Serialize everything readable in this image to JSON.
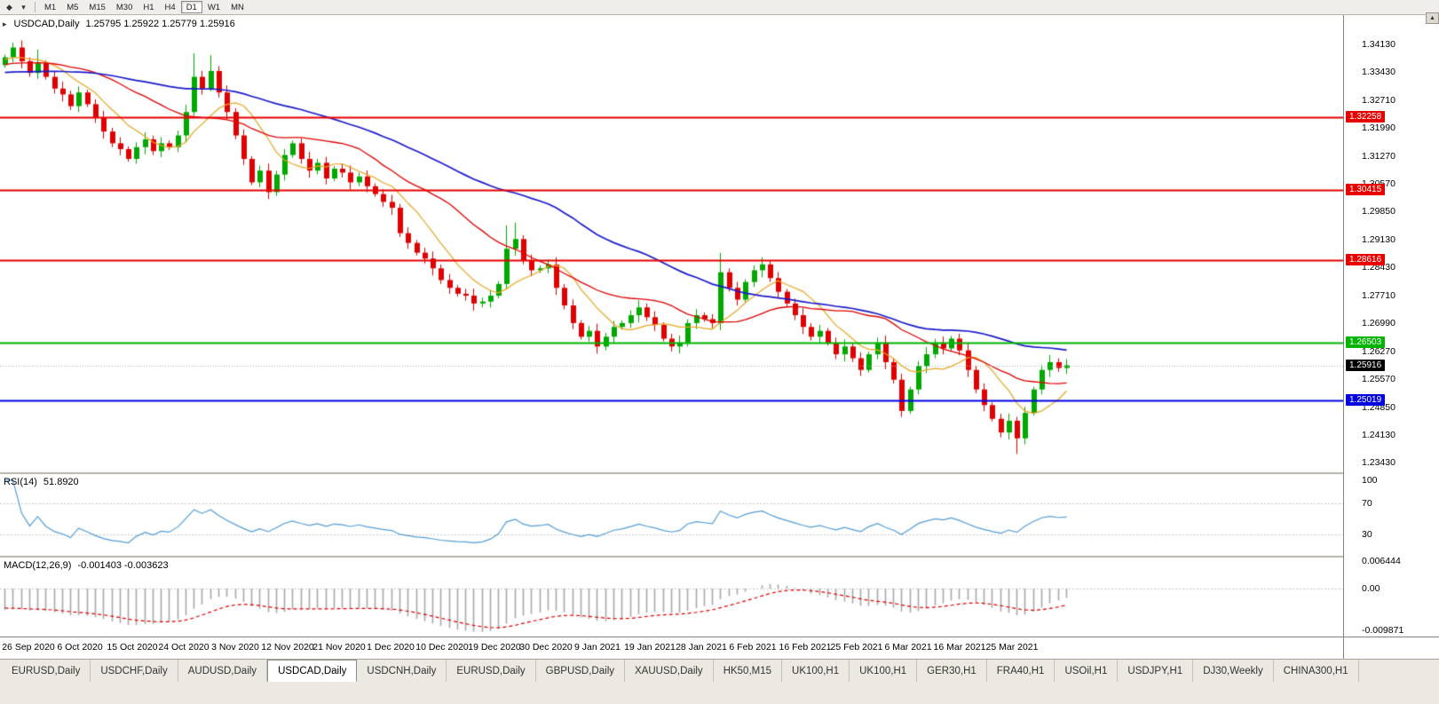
{
  "toolbar": {
    "left_buttons": [
      {
        "name": "chart-type-dropdown",
        "icon": "◆"
      },
      {
        "name": "timeframes-dropdown",
        "icon": "▾"
      }
    ],
    "timeframes": [
      {
        "label": "M1",
        "active": false
      },
      {
        "label": "M5",
        "active": false
      },
      {
        "label": "M15",
        "active": false
      },
      {
        "label": "M30",
        "active": false
      },
      {
        "label": "H1",
        "active": false
      },
      {
        "label": "H4",
        "active": false
      },
      {
        "label": "D1",
        "active": true
      },
      {
        "label": "W1",
        "active": false
      },
      {
        "label": "MN",
        "active": false
      }
    ]
  },
  "chart": {
    "title_icon": "▸",
    "symbol_period": "USDCAD,Daily",
    "ohlc_text": "1.25795 1.25922 1.25779 1.25916",
    "scroll_up_icon": "▲",
    "price_axis_labels": [
      "1.34130",
      "1.33430",
      "1.32710",
      "1.31990",
      "1.31270",
      "1.30570",
      "1.29850",
      "1.29130",
      "1.28430",
      "1.27710",
      "1.26990",
      "1.26270",
      "1.25570",
      "1.24850",
      "1.24130",
      "1.23430"
    ],
    "date_labels": [
      "26 Sep 2020",
      "6 Oct 2020",
      "15 Oct 2020",
      "24 Oct 2020",
      "3 Nov 2020",
      "12 Nov 2020",
      "21 Nov 2020",
      "1 Dec 2020",
      "10 Dec 2020",
      "19 Dec 2020",
      "30 Dec 2020",
      "9 Jan 2021",
      "19 Jan 2021",
      "28 Jan 2021",
      "6 Feb 2021",
      "16 Feb 2021",
      "25 Feb 2021",
      "6 Mar 2021",
      "16 Mar 2021",
      "25 Mar 2021"
    ],
    "hlines": [
      {
        "price": 1.32258,
        "label": "1.32258",
        "color": "#e60000",
        "width": 2
      },
      {
        "price": 1.30415,
        "label": "1.30415",
        "color": "#e60000",
        "width": 2
      },
      {
        "price": 1.28616,
        "label": "1.28616",
        "color": "#e60000",
        "width": 2
      },
      {
        "price": 1.26503,
        "label": "1.26503",
        "color": "#00b400",
        "width": 2
      },
      {
        "price": 1.25019,
        "label": "1.25019",
        "color": "#0000e0",
        "width": 2
      }
    ],
    "current_price": {
      "price": 1.25916,
      "label": "1.25916",
      "color": "#000000"
    },
    "colors": {
      "up": "#00a800",
      "down": "#e00000",
      "ma_fast": "#e8a520",
      "ma_mid": "#e00000",
      "ma_slow": "#1a1acc"
    },
    "candles": {
      "first_open": 1.336,
      "closes": [
        1.338,
        1.3405,
        1.337,
        1.334,
        1.3365,
        1.333,
        1.33,
        1.3285,
        1.3255,
        1.329,
        1.326,
        1.3225,
        1.319,
        1.316,
        1.3145,
        1.312,
        1.315,
        1.317,
        1.314,
        1.316,
        1.315,
        1.318,
        1.324,
        1.333,
        1.33,
        1.3345,
        1.329,
        1.324,
        1.318,
        1.312,
        1.306,
        1.309,
        1.3035,
        1.308,
        1.313,
        1.316,
        1.312,
        1.309,
        1.311,
        1.307,
        1.3095,
        1.3085,
        1.306,
        1.3075,
        1.305,
        1.303,
        1.301,
        1.2995,
        1.293,
        1.2905,
        1.288,
        1.2865,
        1.284,
        1.281,
        1.279,
        1.2775,
        1.277,
        1.275,
        1.2755,
        1.277,
        1.28,
        1.289,
        1.2915,
        1.286,
        1.2835,
        1.284,
        1.285,
        1.279,
        1.2745,
        1.27,
        1.2665,
        1.268,
        1.264,
        1.2665,
        1.269,
        1.27,
        1.272,
        1.274,
        1.2715,
        1.2695,
        1.266,
        1.264,
        1.265,
        1.27,
        1.272,
        1.271,
        1.27,
        1.283,
        1.279,
        1.276,
        1.2805,
        1.2835,
        1.285,
        1.2815,
        1.278,
        1.275,
        1.272,
        1.269,
        1.2665,
        1.268,
        1.265,
        1.262,
        1.264,
        1.261,
        1.258,
        1.262,
        1.265,
        1.26,
        1.2555,
        1.2475,
        1.253,
        1.259,
        1.262,
        1.265,
        1.2635,
        1.266,
        1.263,
        1.258,
        1.253,
        1.249,
        1.2455,
        1.242,
        1.245,
        1.2405,
        1.247,
        1.253,
        1.258,
        1.26,
        1.2585,
        1.2592
      ],
      "wick_overrides": {
        "1": {
          "h": 1.3413
        },
        "4": {
          "h": 1.34
        },
        "23": {
          "h": 1.339
        },
        "25": {
          "h": 1.3385
        },
        "61": {
          "h": 1.295
        },
        "62": {
          "h": 1.2957
        },
        "87": {
          "h": 1.288
        },
        "109": {
          "l": 1.2468
        },
        "123": {
          "l": 1.2365
        }
      }
    }
  },
  "indicators": {
    "rsi": {
      "title": "RSI(14)",
      "value": "51.8920",
      "levels": [
        100,
        70,
        30
      ],
      "color": "#539dd6"
    },
    "macd": {
      "title": "MACD(12,26,9)",
      "values": "-0.001403 -0.003623",
      "axis_labels": [
        "0.006444",
        "0.00",
        "-0.009871"
      ],
      "histogram_color": "#a8a8a8",
      "signal_color": "#e00000"
    }
  },
  "tabs": [
    {
      "label": "EURUSD,Daily",
      "active": false
    },
    {
      "label": "USDCHF,Daily",
      "active": false
    },
    {
      "label": "AUDUSD,Daily",
      "active": false
    },
    {
      "label": "USDCAD,Daily",
      "active": true
    },
    {
      "label": "USDCNH,Daily",
      "active": false
    },
    {
      "label": "EURUSD,Daily",
      "active": false
    },
    {
      "label": "GBPUSD,Daily",
      "active": false
    },
    {
      "label": "XAUUSD,Daily",
      "active": false
    },
    {
      "label": "HK50,M15",
      "active": false
    },
    {
      "label": "UK100,H1",
      "active": false
    },
    {
      "label": "UK100,H1",
      "active": false
    },
    {
      "label": "GER30,H1",
      "active": false
    },
    {
      "label": "FRA40,H1",
      "active": false
    },
    {
      "label": "USOil,H1",
      "active": false
    },
    {
      "label": "USDJPY,H1",
      "active": false
    },
    {
      "label": "DJ30,Weekly",
      "active": false
    },
    {
      "label": "CHINA300,H1",
      "active": false
    }
  ]
}
